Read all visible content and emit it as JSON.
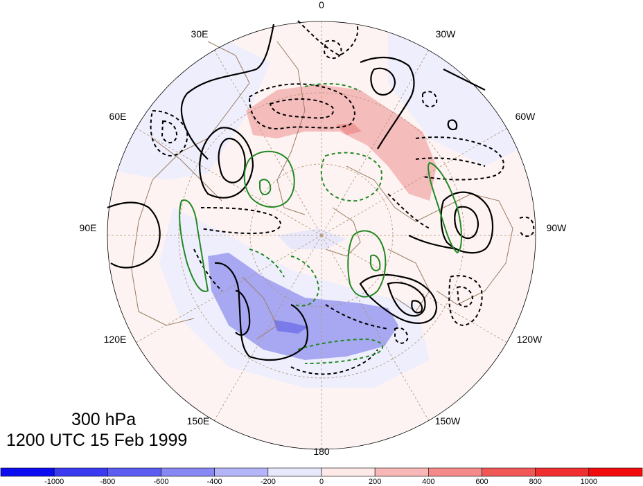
{
  "map": {
    "level_title": "300 hPa",
    "time_title": "1200 UTC 15 Feb 1999",
    "projection": "north-polar-stereographic",
    "longitude_labels": [
      "0",
      "30W",
      "60W",
      "90W",
      "120W",
      "150W",
      "180",
      "150E",
      "120E",
      "90E",
      "60E",
      "30E"
    ]
  },
  "colorbar": {
    "tick_labels": [
      "-1000",
      "-800",
      "-600",
      "-400",
      "-200",
      "0",
      "200",
      "400",
      "600",
      "800",
      "1000"
    ],
    "colors": [
      "#0c0cf0",
      "#3a3af0",
      "#5c5cf2",
      "#8888f4",
      "#b4b4f8",
      "#e8e8fc",
      "#fde9e7",
      "#f8b8b8",
      "#f48a8a",
      "#f05858",
      "#f03030",
      "#f20c0c"
    ]
  },
  "colors": {
    "contour_solid": "#000000",
    "contour_dashed": "#000000",
    "contour_green": "#228822",
    "coastline": "#9a7c62",
    "graticule": "#b09070"
  }
}
